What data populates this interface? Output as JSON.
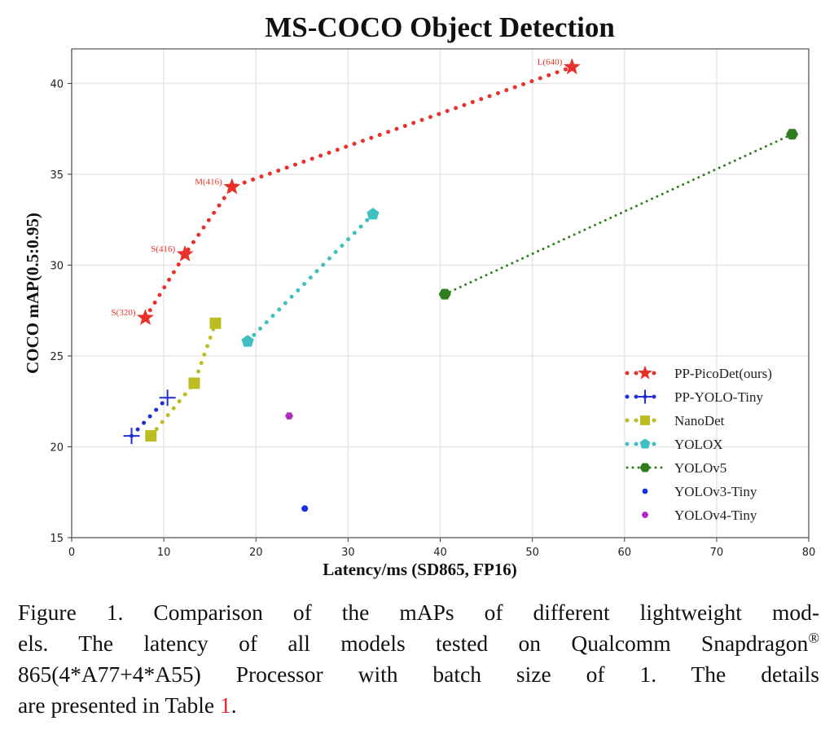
{
  "chart_data": {
    "type": "line",
    "title": "MS-COCO Object Detection",
    "xlabel": "Latency/ms (SD865, FP16)",
    "ylabel": "COCO mAP(0.5:0.95)",
    "xlim": [
      0,
      80
    ],
    "ylim": [
      15,
      41.9
    ],
    "xticks": [
      0,
      10,
      20,
      30,
      40,
      50,
      60,
      70,
      80
    ],
    "yticks": [
      15,
      20,
      25,
      30,
      35,
      40
    ],
    "grid": true,
    "legend_position": "lower-right",
    "series": [
      {
        "name": "PP-PicoDet(ours)",
        "color": "#e8312a",
        "marker": "star",
        "line": "dotted-thick",
        "x": [
          8.0,
          12.3,
          17.4,
          54.3
        ],
        "y": [
          27.1,
          30.6,
          34.3,
          40.9
        ],
        "labels": [
          "S(320)",
          "S(416)",
          "M(416)",
          "L(640)"
        ]
      },
      {
        "name": "PP-YOLO-Tiny",
        "color": "#1f2fd6",
        "marker": "plus",
        "line": "dotted-thick",
        "x": [
          6.5,
          10.4
        ],
        "y": [
          20.6,
          22.7
        ]
      },
      {
        "name": "NanoDet",
        "color": "#bcbd22",
        "marker": "square",
        "line": "dotted-thick",
        "x": [
          8.6,
          13.3,
          15.6
        ],
        "y": [
          20.6,
          23.5,
          26.8
        ]
      },
      {
        "name": "YOLOX",
        "color": "#3fbfbf",
        "marker": "pentagon",
        "line": "dotted-thick",
        "x": [
          19.1,
          32.7
        ],
        "y": [
          25.8,
          32.8
        ]
      },
      {
        "name": "YOLOv5",
        "color": "#2e7d1e",
        "marker": "hexagon",
        "line": "dotted-thin",
        "x": [
          40.5,
          78.2
        ],
        "y": [
          28.4,
          37.2
        ]
      },
      {
        "name": "YOLOv3-Tiny",
        "color": "#1a2fe0",
        "marker": "circle",
        "line": "none",
        "x": [
          25.3
        ],
        "y": [
          16.6
        ]
      },
      {
        "name": "YOLOv4-Tiny",
        "color": "#b02cc0",
        "marker": "hexagon",
        "line": "none",
        "x": [
          23.6
        ],
        "y": [
          21.7
        ]
      }
    ]
  },
  "caption": {
    "lines": [
      "Figure 1. Comparison of the mAPs of different lightweight mod-",
      "els. The latency of all models tested on Qualcomm Snapdragon",
      "865(4*A77+4*A55) Processor with batch size of 1. The details"
    ],
    "registered_mark": "®",
    "last_prefix": "are presented in Table ",
    "table_ref": "1",
    "last_suffix": "."
  }
}
